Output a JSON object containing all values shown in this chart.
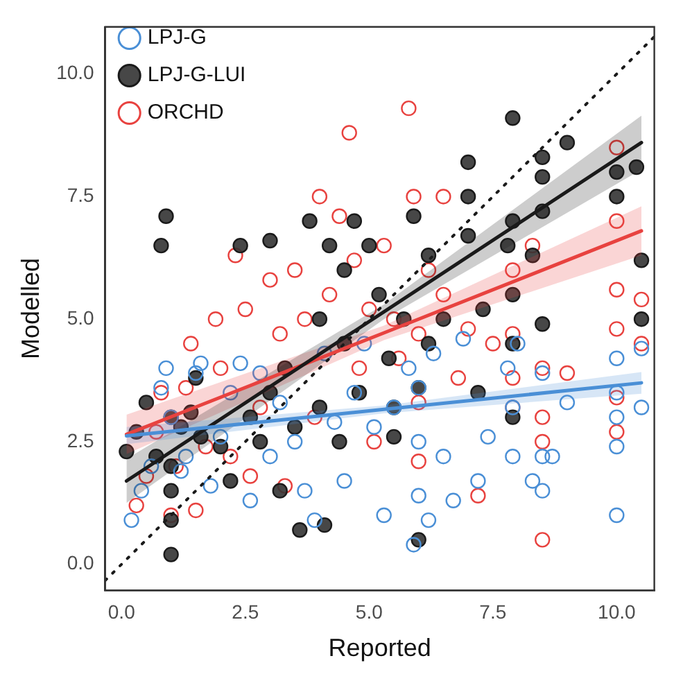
{
  "chart_data": {
    "type": "scatter",
    "xlabel": "Reported",
    "ylabel": "Modelled",
    "xlim": [
      -0.33,
      10.76
    ],
    "ylim": [
      -0.53,
      10.96
    ],
    "xticks": [
      {
        "value": 0,
        "label": "0.0"
      },
      2.5,
      {
        "value": 5,
        "label": "5.0"
      },
      7.5,
      {
        "value": 10,
        "label": "10.0"
      }
    ],
    "yticks": [
      {
        "value": 0,
        "label": "0.0"
      },
      2.5,
      {
        "value": 5,
        "label": "5.0"
      },
      7.5,
      {
        "value": 10,
        "label": "10.0"
      }
    ],
    "legend": "top left",
    "marker": "circle",
    "series": [
      {
        "name": "LPJ-G",
        "type": "scatter",
        "color": "#4a8fd6",
        "x": [
          0.2,
          0.4,
          0.6,
          0.8,
          0.9,
          1.0,
          1.2,
          1.3,
          1.5,
          1.6,
          1.8,
          2.0,
          2.2,
          2.4,
          2.6,
          2.8,
          3.0,
          3.2,
          3.5,
          3.7,
          3.9,
          4.1,
          4.3,
          4.5,
          4.7,
          4.9,
          5.1,
          5.3,
          5.5,
          5.8,
          5.9,
          6.0,
          6.0,
          6.0,
          6.2,
          6.3,
          6.5,
          6.7,
          6.9,
          7.2,
          7.4,
          7.8,
          7.9,
          7.9,
          8.0,
          8.3,
          8.5,
          8.5,
          8.5,
          8.7,
          9.0,
          10.0,
          10.0,
          10.0,
          10.0,
          10.0,
          10.5,
          10.5
        ],
        "values": [
          0.9,
          1.5,
          2.0,
          3.6,
          4.0,
          3.0,
          1.9,
          2.2,
          3.9,
          4.1,
          1.6,
          2.6,
          3.5,
          4.1,
          1.3,
          3.9,
          2.2,
          3.3,
          2.5,
          1.5,
          0.9,
          4.3,
          2.9,
          1.7,
          3.5,
          4.5,
          2.8,
          1.0,
          3.2,
          4.0,
          0.4,
          2.5,
          1.4,
          3.6,
          0.9,
          4.3,
          2.2,
          1.3,
          4.6,
          1.7,
          2.6,
          4.0,
          2.2,
          3.2,
          4.5,
          1.7,
          1.5,
          2.2,
          3.9,
          2.2,
          3.3,
          1.0,
          2.4,
          3.0,
          3.5,
          4.2,
          4.4,
          3.2
        ]
      },
      {
        "name": "LPJ-G-LUI",
        "type": "scatter",
        "color": "#1a1a1a",
        "x": [
          0.1,
          0.3,
          0.5,
          0.7,
          0.8,
          0.9,
          1.0,
          1.0,
          1.0,
          1.0,
          1.0,
          1.2,
          1.4,
          1.5,
          1.6,
          2.0,
          2.2,
          2.4,
          2.6,
          2.8,
          3.0,
          3.2,
          3.3,
          3.5,
          3.6,
          3.8,
          4.0,
          4.0,
          4.1,
          4.2,
          4.4,
          4.5,
          4.5,
          4.7,
          4.8,
          5.0,
          5.2,
          5.4,
          5.5,
          5.7,
          5.9,
          6.0,
          6.0,
          6.2,
          6.5,
          7.0,
          7.0,
          7.0,
          7.2,
          7.3,
          7.8,
          7.9,
          7.9,
          7.9,
          7.9,
          7.9,
          8.3,
          8.5,
          8.5,
          8.5,
          8.5,
          9.0,
          10.0,
          10.0,
          10.4,
          10.5,
          10.5,
          5.5,
          6.2,
          3.0
        ],
        "values": [
          2.3,
          2.7,
          3.3,
          2.2,
          6.5,
          7.1,
          0.2,
          0.9,
          1.5,
          2.0,
          3.0,
          2.8,
          3.1,
          3.8,
          2.6,
          2.4,
          1.7,
          6.5,
          3.0,
          2.5,
          3.5,
          1.5,
          4.0,
          2.8,
          0.7,
          7.0,
          3.2,
          5.0,
          0.8,
          6.5,
          2.5,
          4.5,
          6.0,
          7.0,
          3.5,
          6.5,
          5.5,
          4.2,
          2.6,
          5.0,
          7.1,
          3.6,
          0.5,
          6.3,
          5.0,
          7.5,
          8.2,
          6.7,
          3.5,
          5.2,
          6.5,
          7.0,
          5.5,
          4.5,
          3.0,
          9.1,
          6.3,
          7.9,
          8.3,
          7.2,
          4.9,
          8.6,
          8.0,
          7.5,
          8.1,
          6.2,
          5.0,
          3.2,
          4.5,
          6.6
        ]
      },
      {
        "name": "ORCHD",
        "type": "scatter",
        "color": "#e8423f",
        "x": [
          0.3,
          0.5,
          0.7,
          0.8,
          1.0,
          1.1,
          1.3,
          1.4,
          1.5,
          1.7,
          1.9,
          2.0,
          2.2,
          2.3,
          2.5,
          2.6,
          2.8,
          3.0,
          3.2,
          3.3,
          3.5,
          3.7,
          3.9,
          4.0,
          4.2,
          4.4,
          4.6,
          4.7,
          4.8,
          5.0,
          5.1,
          5.3,
          5.5,
          5.6,
          5.8,
          5.9,
          6.0,
          6.0,
          6.0,
          6.2,
          6.5,
          6.5,
          6.8,
          7.0,
          7.2,
          7.5,
          7.9,
          7.9,
          7.9,
          7.9,
          8.3,
          8.5,
          8.5,
          8.5,
          8.5,
          9.0,
          10.0,
          10.0,
          10.0,
          10.0,
          10.0,
          10.0,
          10.5,
          10.5
        ],
        "values": [
          1.2,
          1.8,
          2.7,
          3.5,
          1.0,
          2.0,
          3.6,
          4.5,
          1.1,
          2.4,
          5.0,
          4.0,
          2.2,
          6.3,
          5.2,
          1.8,
          3.2,
          5.8,
          4.7,
          1.6,
          6.0,
          5.0,
          3.0,
          7.5,
          5.5,
          7.1,
          8.8,
          6.2,
          4.0,
          5.2,
          2.5,
          6.5,
          5.0,
          4.2,
          9.3,
          7.5,
          4.7,
          2.1,
          3.3,
          6.0,
          7.5,
          5.5,
          3.8,
          4.8,
          1.4,
          4.5,
          6.0,
          4.7,
          3.8,
          3.2,
          6.5,
          4.0,
          3.0,
          2.5,
          0.5,
          3.9,
          8.5,
          7.0,
          5.6,
          4.8,
          3.4,
          2.7,
          4.5,
          5.4
        ]
      },
      {
        "type": "line",
        "color": "#4a8fd6",
        "line_style": "solid",
        "marker": "none",
        "x": [
          0.1,
          5.3,
          10.5
        ],
        "values": [
          2.62,
          3.16,
          3.7
        ],
        "lower": [
          2.45,
          3.08,
          3.48
        ],
        "upper": [
          2.8,
          3.24,
          3.92
        ]
      },
      {
        "type": "line",
        "color": "#1a1a1a",
        "line_style": "solid",
        "marker": "none",
        "x": [
          0.1,
          5.3,
          10.5
        ],
        "values": [
          1.7,
          5.15,
          8.6
        ],
        "lower": [
          1.25,
          5.0,
          8.05
        ],
        "upper": [
          2.15,
          5.3,
          9.15
        ]
      },
      {
        "type": "line",
        "color": "#e8423f",
        "line_style": "solid",
        "marker": "none",
        "x": [
          0.1,
          5.3,
          10.5
        ],
        "values": [
          2.65,
          4.72,
          6.8
        ],
        "lower": [
          2.25,
          4.57,
          6.3
        ],
        "upper": [
          3.05,
          4.87,
          7.3
        ]
      },
      {
        "type": "line",
        "color": "#1a1a1a",
        "line_style": "dotted",
        "marker": "none",
        "x": [
          -0.33,
          10.76
        ],
        "values": [
          -0.33,
          10.76
        ]
      }
    ]
  }
}
